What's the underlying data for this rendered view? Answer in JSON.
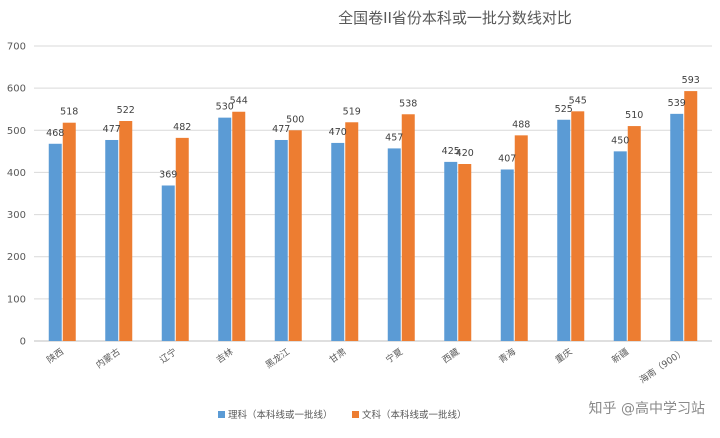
{
  "chart_data": {
    "type": "bar",
    "title": "全国卷II省份本科或一批分数线对比",
    "categories": [
      "陕西",
      "内蒙古",
      "辽宁",
      "吉林",
      "黑龙江",
      "甘肃",
      "宁夏",
      "西藏",
      "青海",
      "重庆",
      "新疆",
      "海南（900）"
    ],
    "series": [
      {
        "name": "理科（本科线或一批线）",
        "color": "#5B9BD5",
        "values": [
          468,
          477,
          369,
          530,
          477,
          470,
          457,
          425,
          407,
          525,
          450,
          539
        ]
      },
      {
        "name": "文科（本科线或一批线）",
        "color": "#ED7D31",
        "values": [
          518,
          522,
          482,
          544,
          500,
          519,
          538,
          420,
          488,
          545,
          510,
          593
        ]
      }
    ],
    "ylim": [
      0,
      700
    ],
    "yticks": [
      0,
      100,
      200,
      300,
      400,
      500,
      600,
      700
    ],
    "grid": true,
    "legend": "bottom"
  },
  "watermark": "知乎 @高中学习站"
}
